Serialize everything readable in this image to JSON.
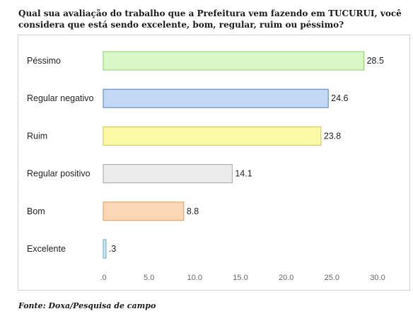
{
  "title": "Qual sua avaliação do trabalho que a Prefeitura vem fazendo em TUCURUI, você considera que está sendo excelente, bom, regular, ruim ou péssimo?",
  "source": "Fonte: Doxa/Pesquisa de campo",
  "chart_data": {
    "type": "bar",
    "orientation": "horizontal",
    "title": "Qual sua avaliação do trabalho que a Prefeitura vem fazendo em TUCURUI, você considera que está sendo excelente, bom, regular, ruim ou péssimo?",
    "categories": [
      "Péssimo",
      "Regular negativo",
      "Ruim",
      "Regular positivo",
      "Bom",
      "Excelente"
    ],
    "values": [
      28.5,
      24.6,
      23.8,
      14.1,
      8.8,
      0.3
    ],
    "value_labels": [
      "28.5",
      "24.6",
      "23.8",
      "14.1",
      "8.8",
      ".3"
    ],
    "xlim": [
      0,
      30
    ],
    "x_ticks": [
      ".0",
      "5.0",
      "10.0",
      "15.0",
      "20.0",
      "25.0",
      "30.0"
    ],
    "grid": false,
    "legend": "none",
    "colors": [
      {
        "fill": "#d9f7c7",
        "stroke": "#8fcf6a"
      },
      {
        "fill": "#c3d8f5",
        "stroke": "#4f81bd"
      },
      {
        "fill": "#fbf8a6",
        "stroke": "#d4c44c"
      },
      {
        "fill": "#ececec",
        "stroke": "#a6a6a6"
      },
      {
        "fill": "#fcd7b6",
        "stroke": "#e29a57"
      },
      {
        "fill": "#cfe8f5",
        "stroke": "#5aa7d4"
      }
    ]
  }
}
